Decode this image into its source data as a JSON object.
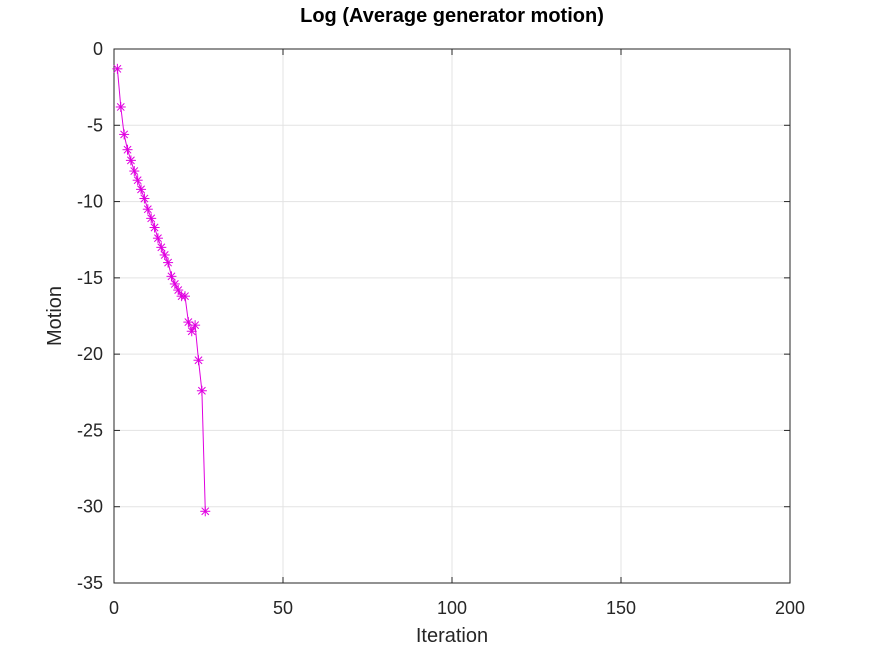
{
  "chart_data": {
    "type": "line",
    "title": "Log (Average generator motion)",
    "xlabel": "Iteration",
    "ylabel": "Motion",
    "xlim": [
      0,
      200
    ],
    "ylim": [
      -35,
      0
    ],
    "xticks": [
      0,
      50,
      100,
      150,
      200
    ],
    "yticks": [
      0,
      -5,
      -10,
      -15,
      -20,
      -25,
      -30,
      -35
    ],
    "grid": true,
    "marker": "asterisk",
    "line_color": "#e000e0",
    "series": [
      {
        "x": [
          1,
          2,
          3,
          4,
          5,
          6,
          7,
          8,
          9,
          10,
          11,
          12,
          13,
          14,
          15,
          16,
          17,
          18,
          19,
          20,
          21,
          22,
          23,
          24,
          25,
          26,
          27
        ],
        "y": [
          -1.3,
          -3.8,
          -5.6,
          -6.6,
          -7.3,
          -8.0,
          -8.6,
          -9.2,
          -9.8,
          -10.5,
          -11.1,
          -11.7,
          -12.4,
          -13.0,
          -13.5,
          -14.0,
          -14.9,
          -15.4,
          -15.8,
          -16.2,
          -16.2,
          -17.9,
          -18.5,
          -18.1,
          -20.4,
          -22.4,
          -30.3
        ]
      }
    ]
  }
}
